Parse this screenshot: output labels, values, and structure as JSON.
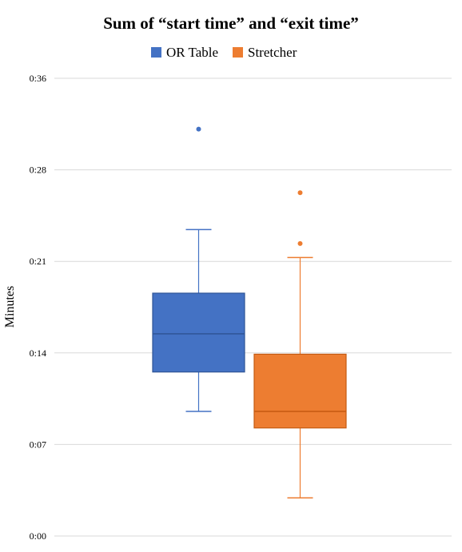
{
  "chart_data": {
    "type": "box",
    "title": "Sum of “start time” and “exit time”",
    "xlabel": "",
    "ylabel": "Minutes",
    "ylim": [
      0,
      36
    ],
    "yticks": [
      {
        "value": 0,
        "label": "0:00"
      },
      {
        "value": 7.2,
        "label": "0:07"
      },
      {
        "value": 14.4,
        "label": "0:14"
      },
      {
        "value": 21.6,
        "label": "0:21"
      },
      {
        "value": 28.8,
        "label": "0:28"
      },
      {
        "value": 36,
        "label": "0:36"
      }
    ],
    "grid": true,
    "legend_position": "top-center",
    "series": [
      {
        "name": "OR Table",
        "color": "#4472C4",
        "stroke": "#2F5597",
        "min": 9.8,
        "q1": 12.9,
        "median": 15.9,
        "q3": 19.1,
        "max": 24.1,
        "outliers": [
          32.0
        ]
      },
      {
        "name": "Stretcher",
        "color": "#ED7D31",
        "stroke": "#C55A11",
        "min": 3.0,
        "q1": 8.5,
        "median": 9.8,
        "q3": 14.3,
        "max": 21.9,
        "outliers": [
          27.0,
          23.0
        ]
      }
    ]
  }
}
